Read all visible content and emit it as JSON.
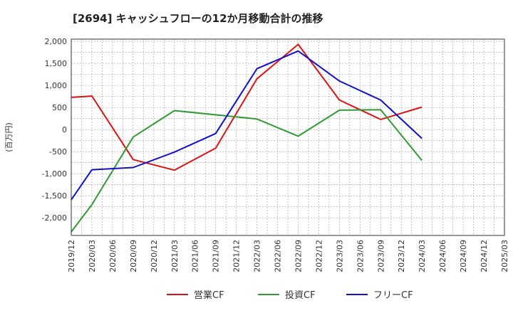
{
  "chart_data": {
    "type": "line",
    "title": "[2694]  キャッシュフローの12か月移動合計の推移",
    "xlabel": "",
    "ylabel": "(百万円)",
    "ylim": [
      -2400,
      2050
    ],
    "yticks": [
      2000,
      1500,
      1000,
      500,
      0,
      -500,
      -1000,
      -1500,
      -2000
    ],
    "ytick_labels": [
      "2,000",
      "1,500",
      "1,000",
      "500",
      "0",
      "-500",
      "-1,000",
      "-1,500",
      "-2,000"
    ],
    "x_ticks": [
      "2019/12",
      "2020/03",
      "2020/06",
      "2020/09",
      "2020/12",
      "2021/03",
      "2021/06",
      "2021/09",
      "2021/12",
      "2022/03",
      "2022/06",
      "2022/09",
      "2022/12",
      "2023/03",
      "2023/06",
      "2023/09",
      "2023/12",
      "2024/03",
      "2024/06",
      "2024/09",
      "2024/12",
      "2025/03"
    ],
    "grid": true,
    "legend_position": "bottom",
    "series": [
      {
        "name": "営業CF",
        "color": "#dd1111",
        "points": [
          {
            "x": "2019/12",
            "y": 730
          },
          {
            "x": "2020/03",
            "y": 760
          },
          {
            "x": "2020/09",
            "y": -680
          },
          {
            "x": "2021/03",
            "y": -920
          },
          {
            "x": "2021/09",
            "y": -420
          },
          {
            "x": "2022/03",
            "y": 1150
          },
          {
            "x": "2022/09",
            "y": 1930
          },
          {
            "x": "2023/03",
            "y": 670
          },
          {
            "x": "2023/09",
            "y": 230
          },
          {
            "x": "2024/03",
            "y": 510
          }
        ]
      },
      {
        "name": "投資CF",
        "color": "#339933",
        "points": [
          {
            "x": "2019/12",
            "y": -2320
          },
          {
            "x": "2020/03",
            "y": -1700
          },
          {
            "x": "2020/09",
            "y": -170
          },
          {
            "x": "2021/03",
            "y": 430
          },
          {
            "x": "2022/03",
            "y": 240
          },
          {
            "x": "2022/09",
            "y": -150
          },
          {
            "x": "2023/03",
            "y": 440
          },
          {
            "x": "2023/09",
            "y": 450
          },
          {
            "x": "2024/03",
            "y": -700
          }
        ]
      },
      {
        "name": "フリーCF",
        "color": "#1111cc",
        "points": [
          {
            "x": "2019/12",
            "y": -1590
          },
          {
            "x": "2020/03",
            "y": -910
          },
          {
            "x": "2020/09",
            "y": -860
          },
          {
            "x": "2021/03",
            "y": -510
          },
          {
            "x": "2021/09",
            "y": -90
          },
          {
            "x": "2022/03",
            "y": 1380
          },
          {
            "x": "2022/09",
            "y": 1780
          },
          {
            "x": "2023/03",
            "y": 1100
          },
          {
            "x": "2023/09",
            "y": 670
          },
          {
            "x": "2024/03",
            "y": -200
          }
        ]
      }
    ]
  }
}
